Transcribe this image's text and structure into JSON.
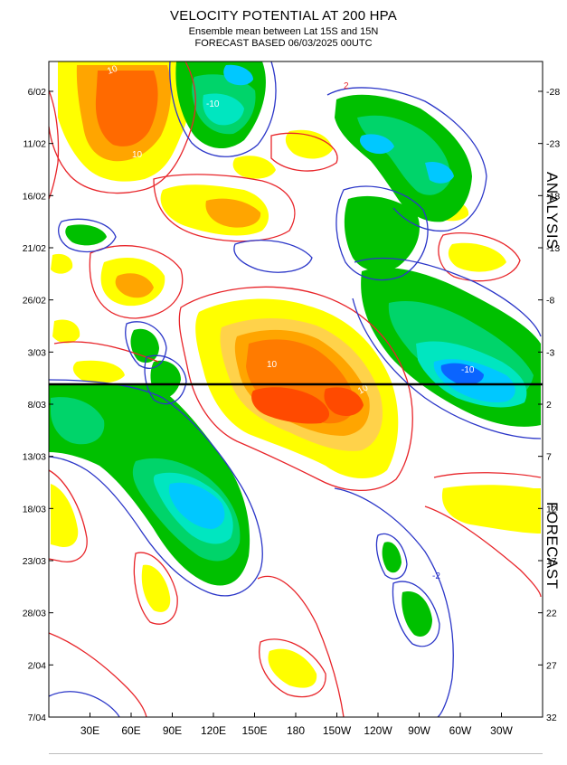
{
  "header": {
    "title": "VELOCITY POTENTIAL AT 200 HPA",
    "subtitle_1": "Ensemble mean between  Lat 15S and 15N",
    "subtitle_2": "FORECAST  BASED 06/03/2025 00UTC"
  },
  "side_labels": {
    "upper": "ANALYSIS",
    "lower": "FORECAST"
  },
  "chart_data": {
    "type": "heatmap",
    "title": "VELOCITY POTENTIAL AT 200 HPA",
    "x_tick_labels": [
      "30E",
      "60E",
      "90E",
      "120E",
      "150E",
      "180",
      "150W",
      "120W",
      "90W",
      "60W",
      "30W"
    ],
    "y_left_tick_labels": [
      "6/02",
      "11/02",
      "16/02",
      "21/02",
      "26/02",
      "3/03",
      "8/03",
      "13/03",
      "18/03",
      "23/03",
      "28/03",
      "2/04",
      "7/04"
    ],
    "y_right_tick_labels": [
      "-28",
      "-23",
      "-18",
      "-13",
      "-8",
      "-3",
      "2",
      "7",
      "12",
      "17",
      "22",
      "27",
      "32"
    ],
    "forecast_start": "06/03/2025",
    "contour_interval": 2,
    "contour_colors": {
      "positive": "#e8252a",
      "negative": "#2b36c8"
    },
    "fill_colors": {
      "2_4": "#ffff00",
      "4_6": "#ffd700",
      "6_8": "#ffa500",
      "8_10": "#ff7b00",
      "10_plus": "#ff4a00",
      "neg_2_4": "#00c000",
      "neg_4_6": "#00d46a",
      "neg_6_8": "#00e6c0",
      "neg_8_10": "#00c8ff",
      "neg_10_plus": "#0a64ff"
    },
    "contour_labels": [
      "10",
      "10",
      "10",
      "10",
      "-10",
      "-10",
      "2",
      "-2"
    ]
  }
}
